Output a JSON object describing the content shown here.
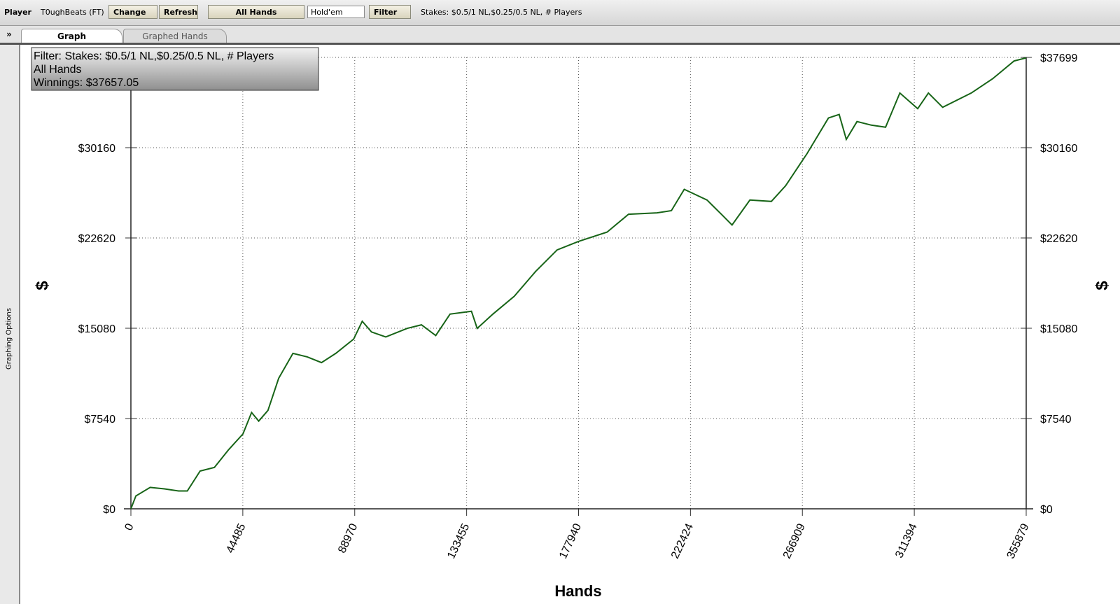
{
  "toolbar": {
    "player_label": "Player",
    "player_name": "T0ughBeats (FT)",
    "change": "Change",
    "refresh": "Refresh",
    "hands": "All Hands",
    "game": "Hold'em",
    "filter": "Filter",
    "filter_summary": "Stakes: $0.5/1 NL,$0.25/0.5 NL, # Players"
  },
  "tabs": [
    "Graph",
    "Graphed Hands"
  ],
  "sidebar": {
    "toggle": "»",
    "title": "Graphing Options"
  },
  "chart_data": {
    "type": "line",
    "annotations": [
      "Filter: Stakes: $0.5/1 NL,$0.25/0.5 NL, # Players",
      "All Hands",
      "Winnings: $37657.05"
    ],
    "x_label": "Hands",
    "y_label": "$",
    "color": "#176417",
    "grid": true,
    "x": [
      0,
      1986,
      7663,
      13339,
      19015,
      22421,
      27529,
      33205,
      38881,
      44557,
      47963,
      50800,
      54490,
      58747,
      64423,
      70099,
      75776,
      81452,
      88547,
      91953,
      95642,
      101318,
      109832,
      115508,
      121184,
      126861,
      135375,
      137645,
      143889,
      152403,
      160918,
      169432,
      177946,
      189298,
      197813,
      209165,
      214841,
      219949,
      229031,
      234707,
      238964,
      246059,
      254573,
      260249,
      268763,
      277278,
      281535,
      284373,
      288630,
      294306,
      299982,
      305658,
      312753,
      317010,
      322686,
      334039,
      342553,
      351067,
      355879
    ],
    "values": [
      0,
      1072,
      1787,
      1668,
      1489,
      1489,
      3157,
      3454,
      4943,
      6254,
      8041,
      7326,
      8220,
      10900,
      12984,
      12687,
      12210,
      12984,
      14175,
      15664,
      14770,
      14354,
      15068,
      15366,
      14473,
      16260,
      16498,
      15068,
      16260,
      17749,
      19834,
      21620,
      22335,
      23109,
      24598,
      24717,
      24896,
      26683,
      25789,
      24598,
      23705,
      25789,
      25670,
      26981,
      29661,
      32639,
      32936,
      30852,
      32341,
      32043,
      31864,
      34723,
      33413,
      34723,
      33532,
      34723,
      35914,
      37403,
      37657
    ],
    "xlim": [
      0,
      355879
    ],
    "xticks": [
      0,
      44485,
      88970,
      133455,
      177940,
      222424,
      266909,
      311394,
      355879
    ],
    "ylim": [
      0,
      37699
    ],
    "yticks": [
      {
        "value": 0,
        "label": "$0"
      },
      {
        "value": 7540,
        "label": "$7540"
      },
      {
        "value": 15080,
        "label": "$15080"
      },
      {
        "value": 22620,
        "label": "$22620"
      },
      {
        "value": 30160,
        "label": "$30160"
      },
      {
        "value": 37699,
        "label": "$37699"
      }
    ]
  }
}
